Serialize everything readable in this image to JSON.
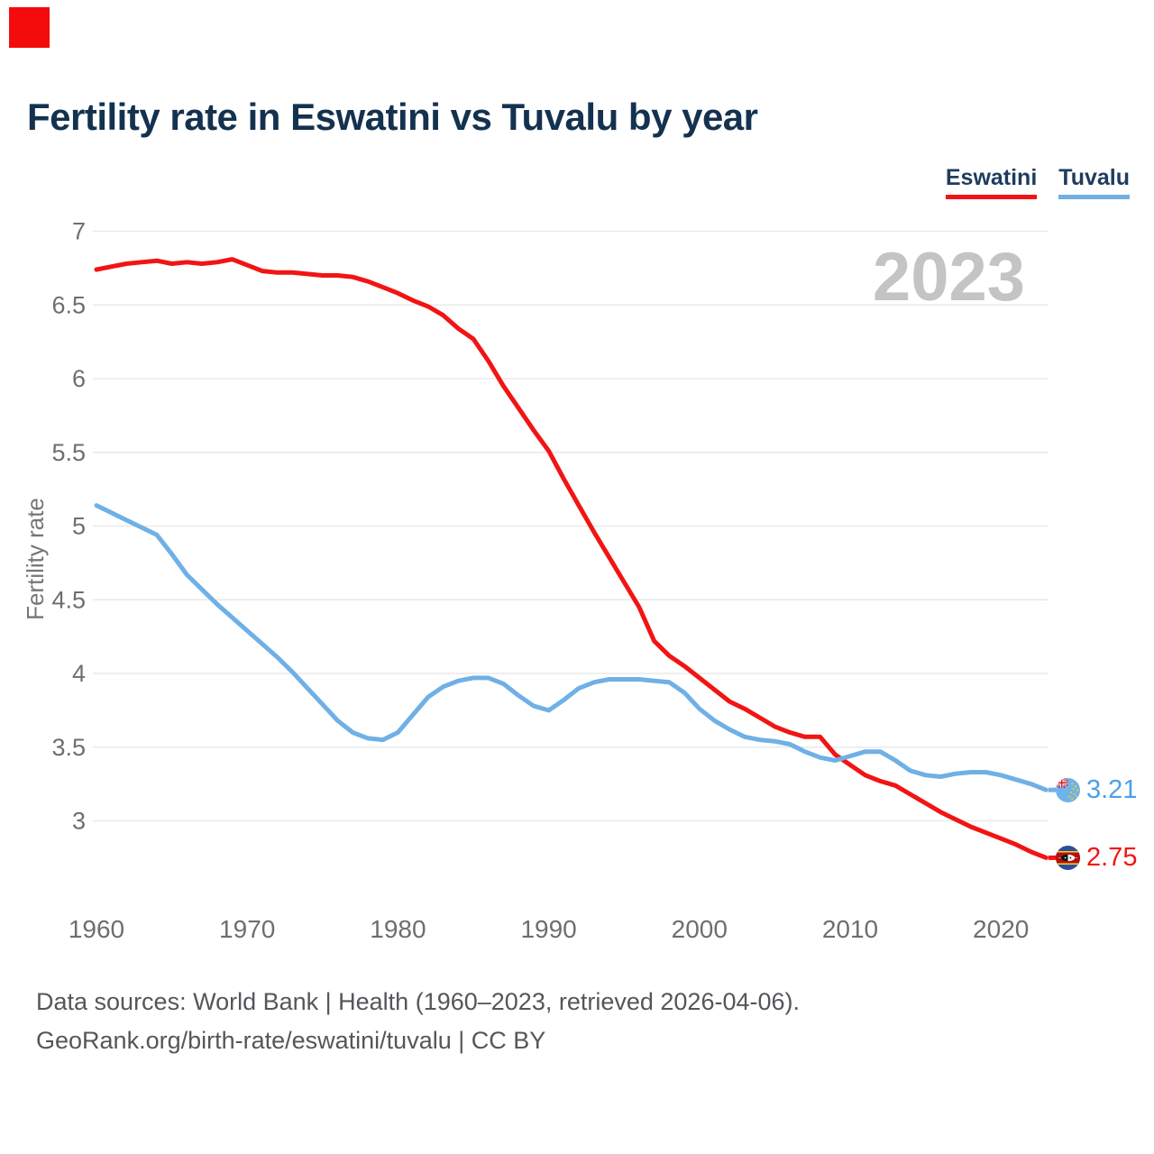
{
  "branding": {
    "mark_color": "#f40c0c"
  },
  "title": "Fertility rate in Eswatini vs Tuvalu by year",
  "watermark": "2023",
  "footer": {
    "line1": "Data sources: World Bank | Health (1960–2023, retrieved 2026-04-06).",
    "line2": "GeoRank.org/birth-rate/eswatini/tuvalu | CC BY"
  },
  "chart_data": {
    "type": "line",
    "title": "Fertility rate in Eswatini vs Tuvalu by year",
    "xlabel": "",
    "ylabel": "Fertility rate",
    "grid": "horizontal-only",
    "legend_position": "top-right",
    "grid_color": "#eaeaea",
    "tick_color": "#6e6e6e",
    "axis_title_color": "#757575",
    "watermark_color": "#c4c4c4",
    "ylim": [
      2.6,
      7.05
    ],
    "y_ticks": [
      3,
      3.5,
      4,
      4.5,
      5,
      5.5,
      6,
      6.5,
      7
    ],
    "x_ticks": [
      1960,
      1970,
      1980,
      1990,
      2000,
      2010,
      2020
    ],
    "years": [
      1960,
      1961,
      1962,
      1963,
      1964,
      1965,
      1966,
      1967,
      1968,
      1969,
      1970,
      1971,
      1972,
      1973,
      1974,
      1975,
      1976,
      1977,
      1978,
      1979,
      1980,
      1981,
      1982,
      1983,
      1984,
      1985,
      1986,
      1987,
      1988,
      1989,
      1990,
      1991,
      1992,
      1993,
      1994,
      1995,
      1996,
      1997,
      1998,
      1999,
      2000,
      2001,
      2002,
      2003,
      2004,
      2005,
      2006,
      2007,
      2008,
      2009,
      2010,
      2011,
      2012,
      2013,
      2014,
      2015,
      2016,
      2017,
      2018,
      2019,
      2020,
      2021,
      2022,
      2023
    ],
    "series": [
      {
        "name": "Eswatini",
        "color": "#f21414",
        "label_color": "#f21414",
        "end_label": "2.75",
        "flag": "eswatini-flag",
        "values": [
          6.74,
          6.76,
          6.78,
          6.79,
          6.8,
          6.78,
          6.79,
          6.78,
          6.79,
          6.81,
          6.77,
          6.73,
          6.72,
          6.72,
          6.71,
          6.7,
          6.7,
          6.69,
          6.66,
          6.62,
          6.58,
          6.53,
          6.49,
          6.43,
          6.34,
          6.27,
          6.12,
          5.95,
          5.8,
          5.65,
          5.51,
          5.32,
          5.14,
          4.96,
          4.79,
          4.62,
          4.45,
          4.22,
          4.12,
          4.05,
          3.97,
          3.89,
          3.81,
          3.76,
          3.7,
          3.64,
          3.6,
          3.57,
          3.57,
          3.45,
          3.38,
          3.31,
          3.27,
          3.24,
          3.18,
          3.12,
          3.06,
          3.01,
          2.96,
          2.92,
          2.88,
          2.84,
          2.79,
          2.75
        ]
      },
      {
        "name": "Tuvalu",
        "color": "#6fb0e6",
        "label_color": "#4d9fe6",
        "end_label": "3.21",
        "flag": "tuvalu-flag",
        "values": [
          5.14,
          5.09,
          5.04,
          4.99,
          4.94,
          4.81,
          4.67,
          4.57,
          4.47,
          4.38,
          4.29,
          4.2,
          4.11,
          4.01,
          3.9,
          3.79,
          3.68,
          3.6,
          3.56,
          3.55,
          3.6,
          3.72,
          3.84,
          3.91,
          3.95,
          3.97,
          3.97,
          3.93,
          3.85,
          3.78,
          3.75,
          3.82,
          3.9,
          3.94,
          3.96,
          3.96,
          3.96,
          3.95,
          3.94,
          3.87,
          3.76,
          3.68,
          3.62,
          3.57,
          3.55,
          3.54,
          3.52,
          3.47,
          3.43,
          3.41,
          3.44,
          3.47,
          3.47,
          3.41,
          3.34,
          3.31,
          3.3,
          3.32,
          3.33,
          3.33,
          3.31,
          3.28,
          3.25,
          3.21
        ]
      }
    ]
  }
}
